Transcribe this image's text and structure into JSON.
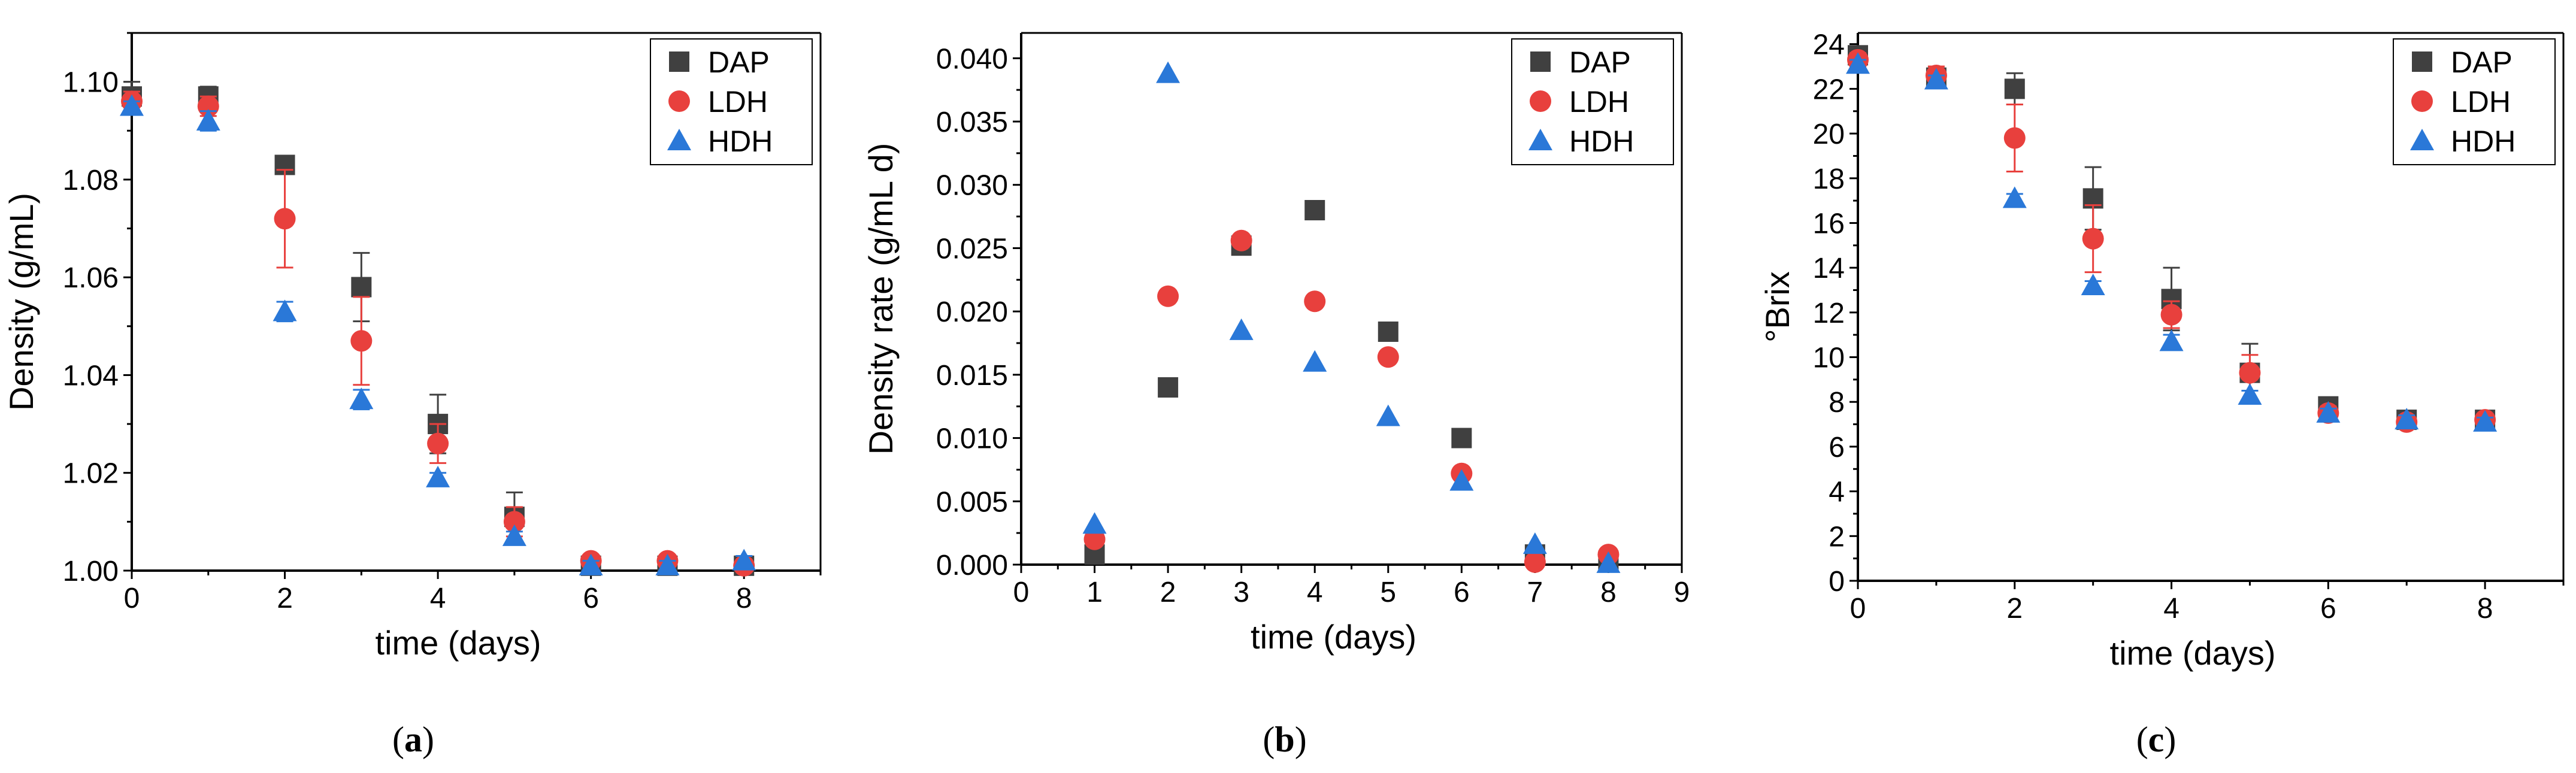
{
  "colors": {
    "DAP": "#404040",
    "LDH": "#e8403d",
    "HDH": "#2a78d8"
  },
  "chart_data": [
    {
      "id": "a",
      "type": "scatter",
      "panel_label": "a",
      "xlabel": "time (days)",
      "ylabel": "Density (g/mL)",
      "xlim": [
        0,
        9
      ],
      "ylim": [
        1.0,
        1.11
      ],
      "xticks": [
        0,
        2,
        4,
        6,
        8
      ],
      "xtick_labels": [
        "0",
        "2",
        "4",
        "6",
        "8"
      ],
      "yticks": [
        1.0,
        1.02,
        1.04,
        1.06,
        1.08,
        1.1
      ],
      "ytick_labels": [
        "1.00",
        "1.02",
        "1.04",
        "1.06",
        "1.08",
        "1.10"
      ],
      "legend": [
        "DAP",
        "LDH",
        "HDH"
      ],
      "legend_position": "top-right",
      "series": [
        {
          "name": "DAP",
          "marker": "square",
          "x": [
            0,
            1,
            2,
            3,
            4,
            5,
            6,
            7,
            8
          ],
          "y": [
            1.097,
            1.097,
            1.083,
            1.058,
            1.03,
            1.011,
            1.001,
            1.001,
            1.001
          ],
          "err": [
            0.003,
            0.002,
            0.001,
            0.007,
            0.006,
            0.005,
            0.001,
            0.001,
            0.001
          ]
        },
        {
          "name": "LDH",
          "marker": "circle",
          "x": [
            0,
            1,
            2,
            3,
            4,
            5,
            6,
            7,
            8
          ],
          "y": [
            1.096,
            1.095,
            1.072,
            1.047,
            1.026,
            1.01,
            1.002,
            1.002,
            1.001
          ],
          "err": [
            0.002,
            0.002,
            0.01,
            0.009,
            0.004,
            0.003,
            0.001,
            0.001,
            0.001
          ]
        },
        {
          "name": "HDH",
          "marker": "triangle",
          "x": [
            0,
            1,
            2,
            3,
            4,
            5,
            6,
            7,
            8
          ],
          "y": [
            1.095,
            1.092,
            1.053,
            1.035,
            1.019,
            1.007,
            1.001,
            1.001,
            1.002
          ],
          "err": [
            0.001,
            0.002,
            0.002,
            0.002,
            0.001,
            0.001,
            0.001,
            0.001,
            0.001
          ]
        }
      ]
    },
    {
      "id": "b",
      "type": "scatter",
      "panel_label": "b",
      "xlabel": "time (days)",
      "ylabel": "Density rate (g/mL d)",
      "xlim": [
        0,
        9
      ],
      "ylim": [
        0,
        0.042
      ],
      "xticks": [
        0,
        1,
        2,
        3,
        4,
        5,
        6,
        7,
        8,
        9
      ],
      "xtick_labels": [
        "0",
        "1",
        "2",
        "3",
        "4",
        "5",
        "6",
        "7",
        "8",
        "9"
      ],
      "yticks": [
        0,
        0.005,
        0.01,
        0.015,
        0.02,
        0.025,
        0.03,
        0.035,
        0.04
      ],
      "ytick_labels": [
        "0.000",
        "0.005",
        "0.010",
        "0.015",
        "0.020",
        "0.025",
        "0.030",
        "0.035",
        "0.040"
      ],
      "legend": [
        "DAP",
        "LDH",
        "HDH"
      ],
      "legend_position": "top-right",
      "series": [
        {
          "name": "DAP",
          "marker": "square",
          "x": [
            1,
            2,
            3,
            4,
            5,
            6,
            7,
            8
          ],
          "y": [
            0.0008,
            0.014,
            0.0252,
            0.028,
            0.0184,
            0.01,
            0.0008,
            0.0003
          ]
        },
        {
          "name": "LDH",
          "marker": "circle",
          "x": [
            1,
            2,
            3,
            4,
            5,
            6,
            7,
            8
          ],
          "y": [
            0.002,
            0.0212,
            0.0256,
            0.0208,
            0.0164,
            0.0072,
            0.0002,
            0.0008
          ]
        },
        {
          "name": "HDH",
          "marker": "triangle",
          "x": [
            1,
            2,
            3,
            4,
            5,
            6,
            7,
            8
          ],
          "y": [
            0.0032,
            0.0388,
            0.0185,
            0.016,
            0.0117,
            0.0066,
            0.0016,
            0.0001
          ]
        }
      ]
    },
    {
      "id": "c",
      "type": "scatter",
      "panel_label": "c",
      "xlabel": "time (days)",
      "ylabel": "°Brix",
      "xlim": [
        0,
        9
      ],
      "ylim": [
        0,
        24.5
      ],
      "xticks": [
        0,
        2,
        4,
        6,
        8
      ],
      "xtick_labels": [
        "0",
        "2",
        "4",
        "6",
        "8"
      ],
      "yticks": [
        0,
        2,
        4,
        6,
        8,
        10,
        12,
        14,
        16,
        18,
        20,
        22,
        24
      ],
      "ytick_labels": [
        "0",
        "2",
        "4",
        "6",
        "8",
        "10",
        "12",
        "14",
        "16",
        "18",
        "20",
        "22",
        "24"
      ],
      "legend": [
        "DAP",
        "LDH",
        "HDH"
      ],
      "legend_position": "top-right",
      "series": [
        {
          "name": "DAP",
          "marker": "square",
          "x": [
            0,
            1,
            2,
            3,
            4,
            5,
            6,
            7,
            8
          ],
          "y": [
            23.5,
            22.5,
            22.0,
            17.1,
            12.6,
            9.3,
            7.8,
            7.2,
            7.2
          ],
          "err": [
            0.3,
            0.3,
            0.7,
            1.4,
            1.4,
            1.3,
            0.4,
            0.2,
            0.2
          ]
        },
        {
          "name": "LDH",
          "marker": "circle",
          "x": [
            0,
            1,
            2,
            3,
            4,
            5,
            6,
            7,
            8
          ],
          "y": [
            23.3,
            22.6,
            19.8,
            15.3,
            11.9,
            9.3,
            7.5,
            7.1,
            7.2
          ],
          "err": [
            0.3,
            0.4,
            1.5,
            1.5,
            0.6,
            0.8,
            0.3,
            0.2,
            0.2
          ]
        },
        {
          "name": "HDH",
          "marker": "triangle",
          "x": [
            0,
            1,
            2,
            3,
            4,
            5,
            6,
            7,
            8
          ],
          "y": [
            23.1,
            22.4,
            17.1,
            13.2,
            10.7,
            8.3,
            7.5,
            7.2,
            7.1
          ],
          "err": [
            0.2,
            0.2,
            0.2,
            0.2,
            0.3,
            0.2,
            0.2,
            0.2,
            0.2
          ]
        }
      ]
    }
  ]
}
